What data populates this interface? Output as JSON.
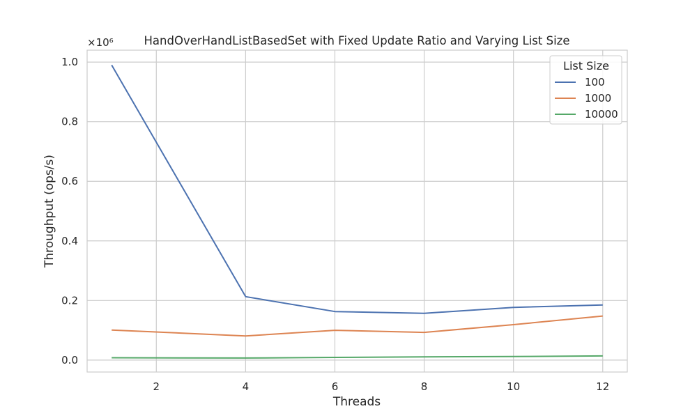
{
  "chart_data": {
    "type": "line",
    "title": "HandOverHandListBasedSet with Fixed Update Ratio and Varying List Size",
    "xlabel": "Threads",
    "ylabel": "Throughput (ops/s)",
    "y_scale_label": "×10⁶",
    "xlim": [
      0.45,
      12.55
    ],
    "ylim": [
      -0.04,
      1.04
    ],
    "x_ticks": [
      2,
      4,
      6,
      8,
      10,
      12
    ],
    "y_ticks": [
      0.0,
      0.2,
      0.4,
      0.6,
      0.8,
      1.0
    ],
    "y_tick_labels": [
      "0.0",
      "0.2",
      "0.4",
      "0.6",
      "0.8",
      "1.0"
    ],
    "grid": true,
    "legend": {
      "title": "List Size",
      "placement": "top-right"
    },
    "x": [
      1,
      4,
      6,
      8,
      10,
      12
    ],
    "series": [
      {
        "name": "100",
        "color": "#4c72b0",
        "values": [
          0.99,
          0.213,
          0.163,
          0.157,
          0.177,
          0.185
        ]
      },
      {
        "name": "1000",
        "color": "#dd8452",
        "values": [
          0.101,
          0.081,
          0.1,
          0.093,
          0.119,
          0.148
        ]
      },
      {
        "name": "10000",
        "color": "#55a868",
        "values": [
          0.008,
          0.007,
          0.009,
          0.011,
          0.012,
          0.014
        ]
      }
    ]
  }
}
